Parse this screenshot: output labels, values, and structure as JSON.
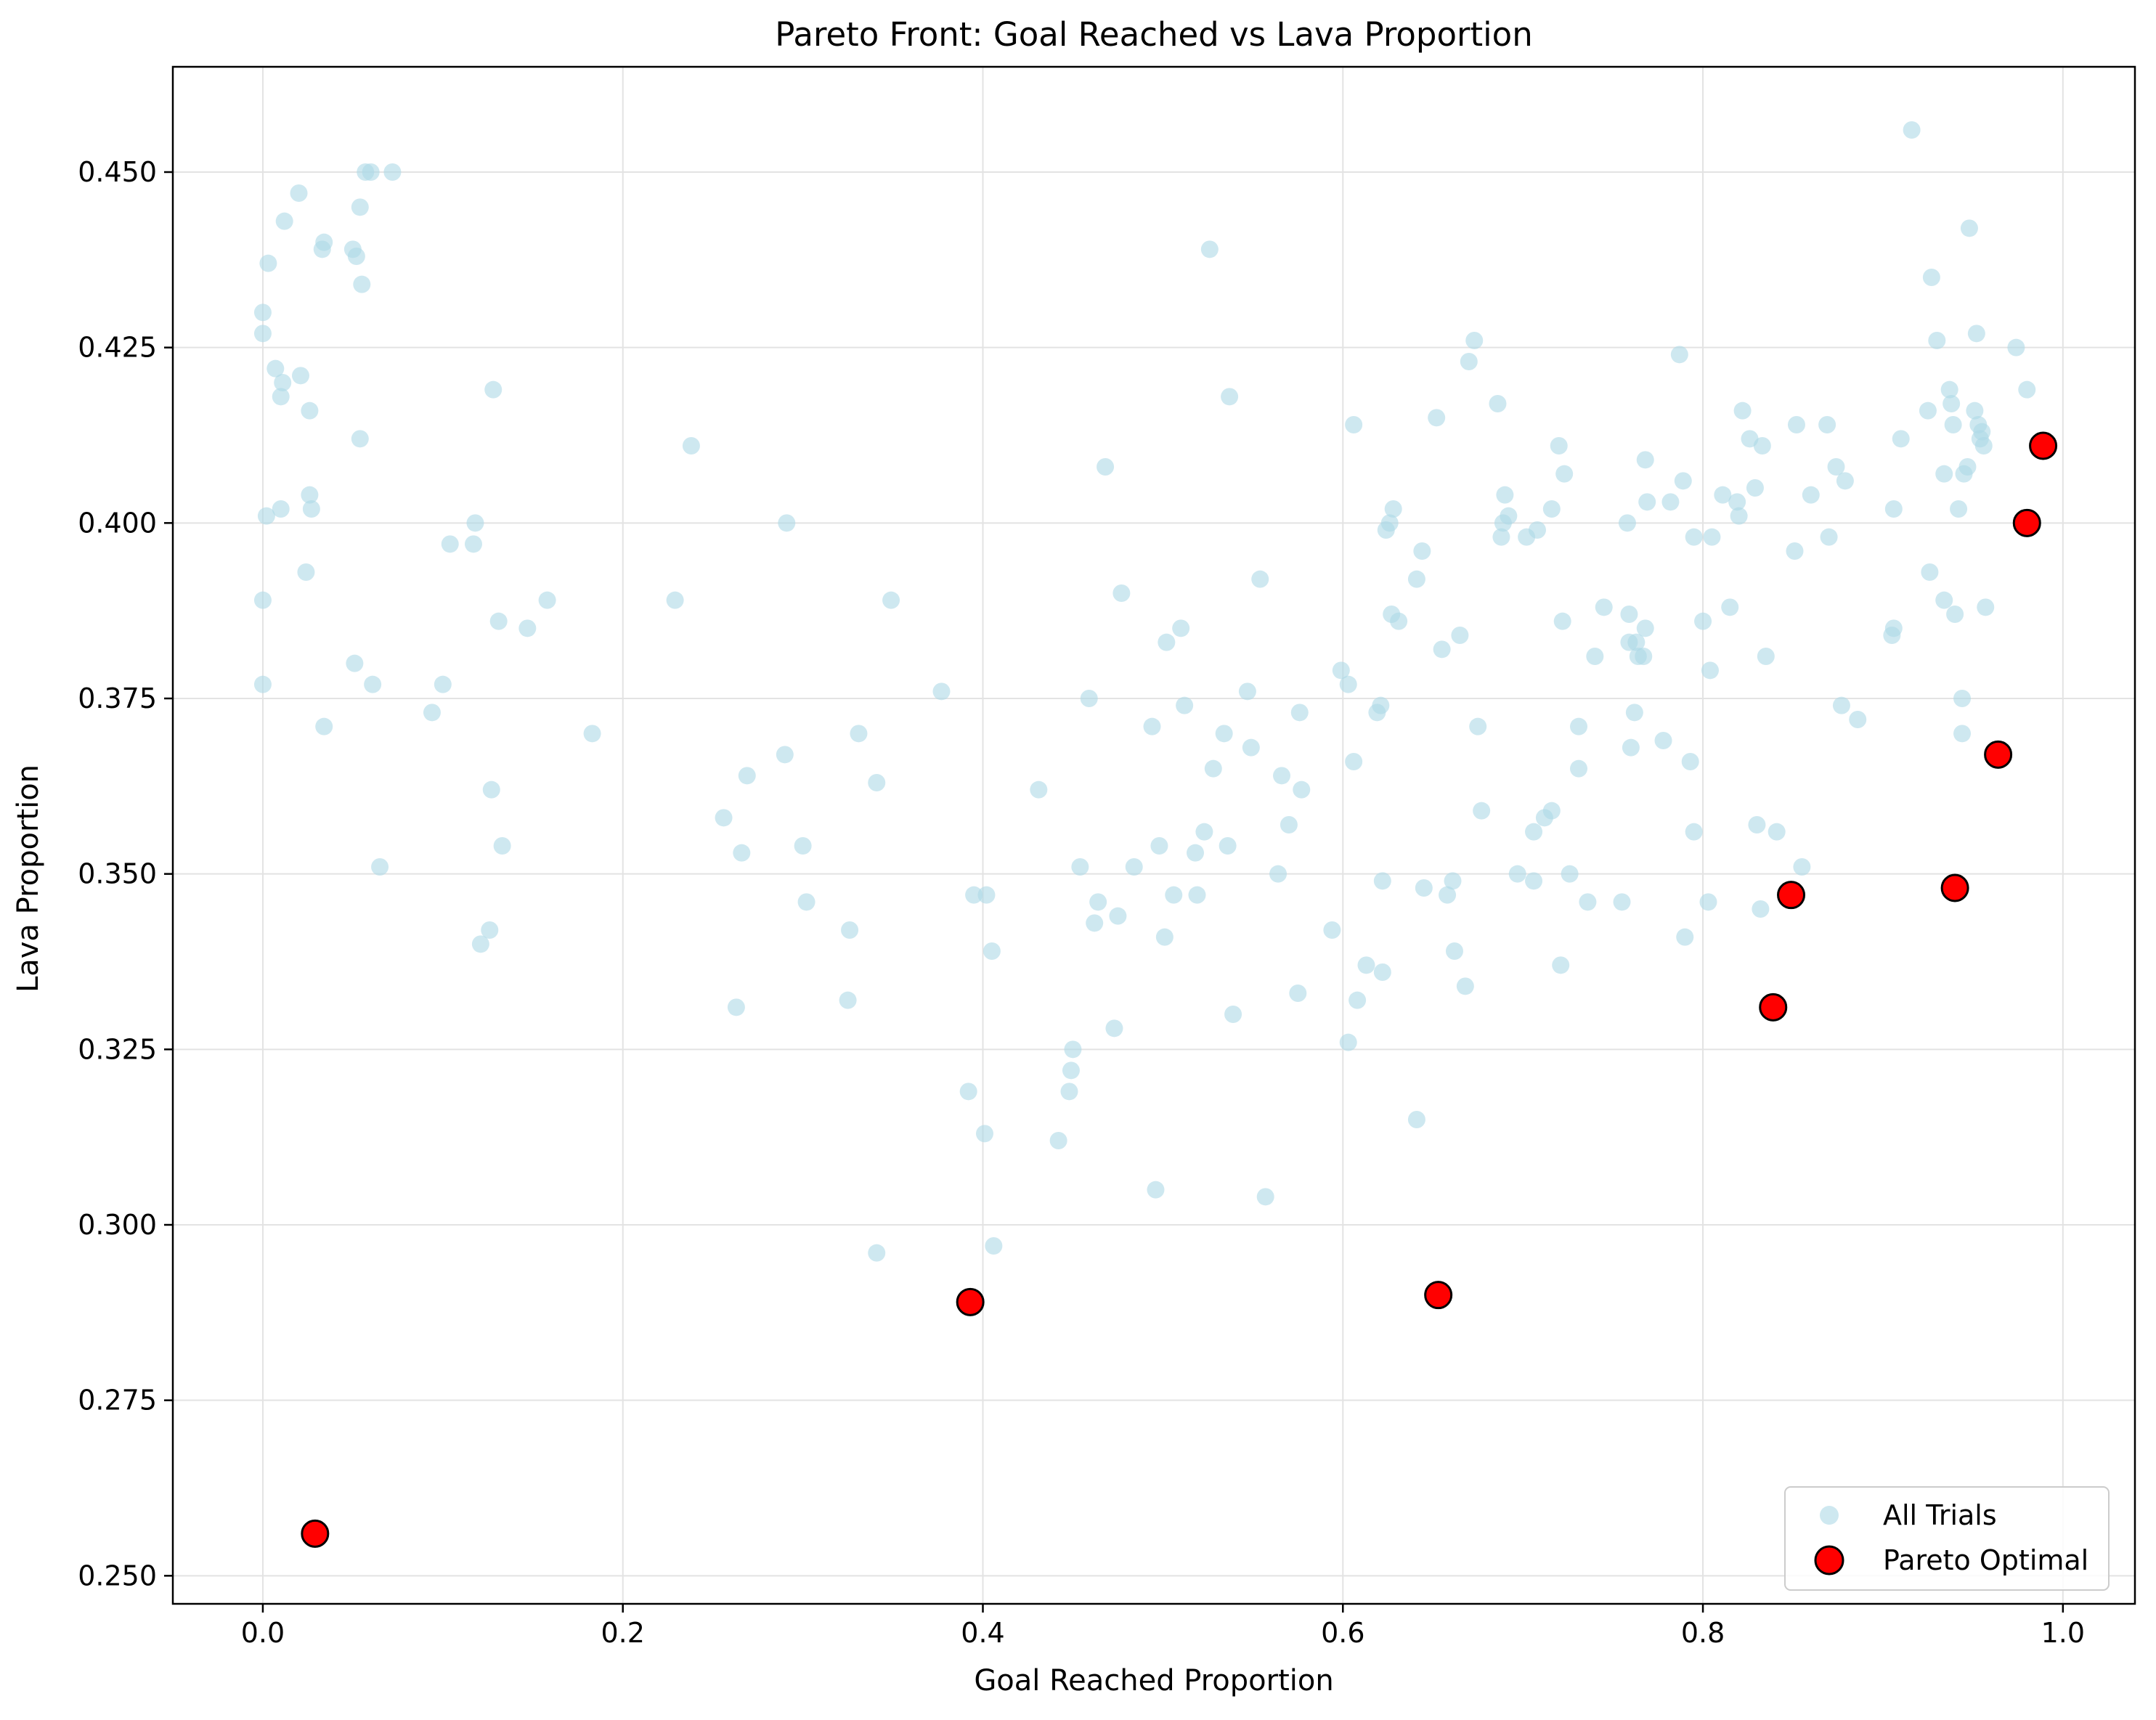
{
  "chart_data": {
    "type": "scatter",
    "title": "Pareto Front: Goal Reached vs Lava Proportion",
    "xlabel": "Goal Reached Proportion",
    "ylabel": "Lava Proportion",
    "xlim": [
      -0.05,
      1.04
    ],
    "ylim": [
      0.246,
      0.465
    ],
    "x_ticks": [
      "0.0",
      "0.2",
      "0.4",
      "0.6",
      "0.8",
      "1.0"
    ],
    "x_tick_values": [
      0.0,
      0.2,
      0.4,
      0.6,
      0.8,
      1.0
    ],
    "y_ticks": [
      "0.250",
      "0.275",
      "0.300",
      "0.325",
      "0.350",
      "0.375",
      "0.400",
      "0.425",
      "0.450"
    ],
    "y_tick_values": [
      0.25,
      0.275,
      0.3,
      0.325,
      0.35,
      0.375,
      0.4,
      0.425,
      0.45
    ],
    "grid": true,
    "legend_position": "lower-right",
    "series": [
      {
        "name": "All Trials",
        "color": "#add8e6",
        "marker": "circle-small-translucent",
        "points": [
          [
            0.0,
            0.43
          ],
          [
            0.0,
            0.427
          ],
          [
            0.003,
            0.437
          ],
          [
            0.007,
            0.422
          ],
          [
            0.011,
            0.42
          ],
          [
            0.01,
            0.418
          ],
          [
            0.012,
            0.443
          ],
          [
            0.02,
            0.447
          ],
          [
            0.021,
            0.421
          ],
          [
            0.026,
            0.416
          ],
          [
            0.026,
            0.404
          ],
          [
            0.027,
            0.402
          ],
          [
            0.01,
            0.402
          ],
          [
            0.002,
            0.401
          ],
          [
            0.024,
            0.393
          ],
          [
            0.0,
            0.389
          ],
          [
            0.0,
            0.377
          ],
          [
            0.034,
            0.371
          ],
          [
            0.033,
            0.439
          ],
          [
            0.034,
            0.44
          ],
          [
            0.05,
            0.439
          ],
          [
            0.052,
            0.438
          ],
          [
            0.054,
            0.445
          ],
          [
            0.055,
            0.434
          ],
          [
            0.057,
            0.45
          ],
          [
            0.06,
            0.45
          ],
          [
            0.072,
            0.45
          ],
          [
            0.054,
            0.412
          ],
          [
            0.051,
            0.38
          ],
          [
            0.061,
            0.377
          ],
          [
            0.065,
            0.351
          ],
          [
            0.094,
            0.373
          ],
          [
            0.1,
            0.377
          ],
          [
            0.104,
            0.397
          ],
          [
            0.118,
            0.4
          ],
          [
            0.117,
            0.397
          ],
          [
            0.121,
            0.34
          ],
          [
            0.126,
            0.342
          ],
          [
            0.127,
            0.362
          ],
          [
            0.128,
            0.419
          ],
          [
            0.131,
            0.386
          ],
          [
            0.133,
            0.354
          ],
          [
            0.147,
            0.385
          ],
          [
            0.158,
            0.389
          ],
          [
            0.183,
            0.37
          ],
          [
            0.229,
            0.389
          ],
          [
            0.238,
            0.411
          ],
          [
            0.256,
            0.358
          ],
          [
            0.263,
            0.331
          ],
          [
            0.266,
            0.353
          ],
          [
            0.269,
            0.364
          ],
          [
            0.29,
            0.367
          ],
          [
            0.291,
            0.4
          ],
          [
            0.3,
            0.354
          ],
          [
            0.302,
            0.346
          ],
          [
            0.325,
            0.332
          ],
          [
            0.326,
            0.342
          ],
          [
            0.331,
            0.37
          ],
          [
            0.341,
            0.363
          ],
          [
            0.341,
            0.296
          ],
          [
            0.349,
            0.389
          ],
          [
            0.377,
            0.376
          ],
          [
            0.392,
            0.319
          ],
          [
            0.395,
            0.347
          ],
          [
            0.401,
            0.313
          ],
          [
            0.402,
            0.347
          ],
          [
            0.405,
            0.339
          ],
          [
            0.406,
            0.297
          ],
          [
            0.431,
            0.362
          ],
          [
            0.442,
            0.312
          ],
          [
            0.448,
            0.319
          ],
          [
            0.449,
            0.322
          ],
          [
            0.45,
            0.325
          ],
          [
            0.454,
            0.351
          ],
          [
            0.459,
            0.375
          ],
          [
            0.462,
            0.343
          ],
          [
            0.464,
            0.346
          ],
          [
            0.468,
            0.408
          ],
          [
            0.473,
            0.328
          ],
          [
            0.475,
            0.344
          ],
          [
            0.477,
            0.39
          ],
          [
            0.484,
            0.351
          ],
          [
            0.494,
            0.371
          ],
          [
            0.496,
            0.305
          ],
          [
            0.498,
            0.354
          ],
          [
            0.501,
            0.341
          ],
          [
            0.502,
            0.383
          ],
          [
            0.506,
            0.347
          ],
          [
            0.51,
            0.385
          ],
          [
            0.512,
            0.374
          ],
          [
            0.518,
            0.353
          ],
          [
            0.519,
            0.347
          ],
          [
            0.523,
            0.356
          ],
          [
            0.526,
            0.439
          ],
          [
            0.528,
            0.365
          ],
          [
            0.534,
            0.37
          ],
          [
            0.536,
            0.354
          ],
          [
            0.537,
            0.418
          ],
          [
            0.539,
            0.33
          ],
          [
            0.547,
            0.376
          ],
          [
            0.549,
            0.368
          ],
          [
            0.554,
            0.392
          ],
          [
            0.557,
            0.304
          ],
          [
            0.564,
            0.35
          ],
          [
            0.566,
            0.364
          ],
          [
            0.57,
            0.357
          ],
          [
            0.575,
            0.333
          ],
          [
            0.576,
            0.373
          ],
          [
            0.577,
            0.362
          ],
          [
            0.594,
            0.342
          ],
          [
            0.599,
            0.379
          ],
          [
            0.603,
            0.377
          ],
          [
            0.603,
            0.326
          ],
          [
            0.606,
            0.366
          ],
          [
            0.606,
            0.414
          ],
          [
            0.608,
            0.332
          ],
          [
            0.613,
            0.337
          ],
          [
            0.619,
            0.373
          ],
          [
            0.621,
            0.374
          ],
          [
            0.622,
            0.349
          ],
          [
            0.622,
            0.336
          ],
          [
            0.624,
            0.399
          ],
          [
            0.626,
            0.4
          ],
          [
            0.627,
            0.387
          ],
          [
            0.628,
            0.402
          ],
          [
            0.631,
            0.386
          ],
          [
            0.641,
            0.392
          ],
          [
            0.641,
            0.315
          ],
          [
            0.644,
            0.396
          ],
          [
            0.645,
            0.348
          ],
          [
            0.652,
            0.415
          ],
          [
            0.655,
            0.382
          ],
          [
            0.658,
            0.347
          ],
          [
            0.661,
            0.349
          ],
          [
            0.662,
            0.339
          ],
          [
            0.665,
            0.384
          ],
          [
            0.668,
            0.334
          ],
          [
            0.67,
            0.423
          ],
          [
            0.673,
            0.426
          ],
          [
            0.675,
            0.371
          ],
          [
            0.677,
            0.359
          ],
          [
            0.686,
            0.417
          ],
          [
            0.688,
            0.398
          ],
          [
            0.689,
            0.4
          ],
          [
            0.69,
            0.404
          ],
          [
            0.692,
            0.401
          ],
          [
            0.697,
            0.35
          ],
          [
            0.702,
            0.398
          ],
          [
            0.706,
            0.349
          ],
          [
            0.706,
            0.356
          ],
          [
            0.708,
            0.399
          ],
          [
            0.712,
            0.358
          ],
          [
            0.716,
            0.402
          ],
          [
            0.716,
            0.359
          ],
          [
            0.72,
            0.411
          ],
          [
            0.721,
            0.337
          ],
          [
            0.722,
            0.386
          ],
          [
            0.723,
            0.407
          ],
          [
            0.726,
            0.35
          ],
          [
            0.731,
            0.365
          ],
          [
            0.731,
            0.371
          ],
          [
            0.736,
            0.346
          ],
          [
            0.74,
            0.381
          ],
          [
            0.745,
            0.388
          ],
          [
            0.755,
            0.346
          ],
          [
            0.758,
            0.4
          ],
          [
            0.759,
            0.387
          ],
          [
            0.759,
            0.383
          ],
          [
            0.76,
            0.368
          ],
          [
            0.762,
            0.373
          ],
          [
            0.763,
            0.383
          ],
          [
            0.764,
            0.381
          ],
          [
            0.767,
            0.381
          ],
          [
            0.768,
            0.385
          ],
          [
            0.768,
            0.409
          ],
          [
            0.769,
            0.403
          ],
          [
            0.778,
            0.369
          ],
          [
            0.782,
            0.403
          ],
          [
            0.787,
            0.424
          ],
          [
            0.789,
            0.406
          ],
          [
            0.79,
            0.341
          ],
          [
            0.793,
            0.366
          ],
          [
            0.795,
            0.356
          ],
          [
            0.795,
            0.398
          ],
          [
            0.8,
            0.386
          ],
          [
            0.803,
            0.346
          ],
          [
            0.804,
            0.379
          ],
          [
            0.805,
            0.398
          ],
          [
            0.811,
            0.404
          ],
          [
            0.815,
            0.388
          ],
          [
            0.819,
            0.403
          ],
          [
            0.82,
            0.401
          ],
          [
            0.822,
            0.416
          ],
          [
            0.826,
            0.412
          ],
          [
            0.829,
            0.405
          ],
          [
            0.83,
            0.357
          ],
          [
            0.832,
            0.345
          ],
          [
            0.833,
            0.411
          ],
          [
            0.835,
            0.381
          ],
          [
            0.841,
            0.356
          ],
          [
            0.851,
            0.396
          ],
          [
            0.852,
            0.414
          ],
          [
            0.855,
            0.351
          ],
          [
            0.86,
            0.404
          ],
          [
            0.869,
            0.414
          ],
          [
            0.87,
            0.398
          ],
          [
            0.874,
            0.408
          ],
          [
            0.877,
            0.374
          ],
          [
            0.879,
            0.406
          ],
          [
            0.886,
            0.372
          ],
          [
            0.905,
            0.384
          ],
          [
            0.906,
            0.385
          ],
          [
            0.906,
            0.402
          ],
          [
            0.91,
            0.412
          ],
          [
            0.916,
            0.456
          ],
          [
            0.925,
            0.416
          ],
          [
            0.926,
            0.393
          ],
          [
            0.927,
            0.435
          ],
          [
            0.93,
            0.426
          ],
          [
            0.934,
            0.389
          ],
          [
            0.934,
            0.407
          ],
          [
            0.937,
            0.419
          ],
          [
            0.938,
            0.417
          ],
          [
            0.939,
            0.414
          ],
          [
            0.94,
            0.387
          ],
          [
            0.942,
            0.402
          ],
          [
            0.944,
            0.375
          ],
          [
            0.944,
            0.37
          ],
          [
            0.945,
            0.407
          ],
          [
            0.947,
            0.408
          ],
          [
            0.948,
            0.442
          ],
          [
            0.951,
            0.416
          ],
          [
            0.952,
            0.427
          ],
          [
            0.953,
            0.414
          ],
          [
            0.954,
            0.412
          ],
          [
            0.955,
            0.413
          ],
          [
            0.956,
            0.411
          ],
          [
            0.957,
            0.388
          ],
          [
            0.974,
            0.425
          ],
          [
            0.98,
            0.419
          ]
        ]
      },
      {
        "name": "Pareto Optimal",
        "color": "#ff0000",
        "marker": "circle-large-black-edge",
        "points": [
          [
            0.029,
            0.256
          ],
          [
            0.393,
            0.289
          ],
          [
            0.653,
            0.29
          ],
          [
            0.839,
            0.331
          ],
          [
            0.849,
            0.347
          ],
          [
            0.94,
            0.348
          ],
          [
            0.964,
            0.367
          ],
          [
            0.98,
            0.4
          ],
          [
            0.989,
            0.411
          ]
        ]
      }
    ]
  }
}
